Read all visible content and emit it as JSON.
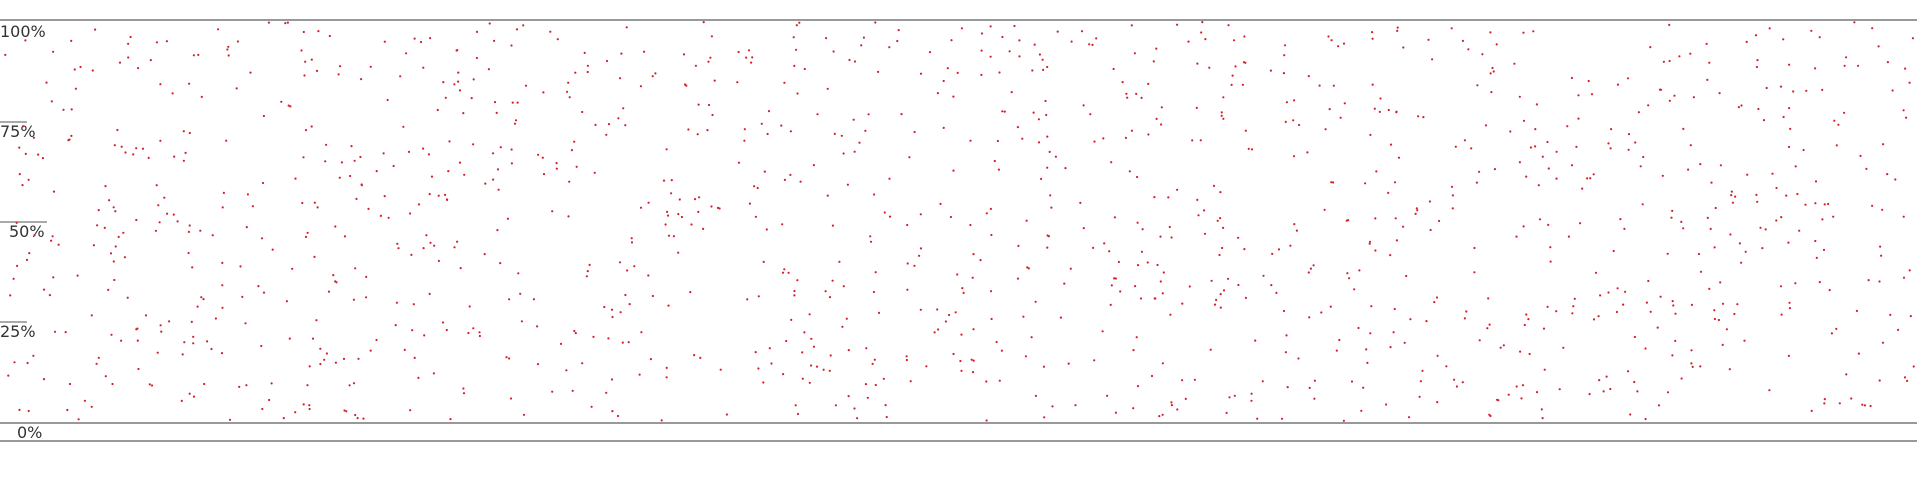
{
  "colors": {
    "point": "#d21f2b",
    "axis_line": "#333333",
    "tick_mark": "#555555",
    "tick_text": "#333333",
    "background": "#ffffff"
  },
  "chart_data": {
    "type": "scatter",
    "title": "",
    "xlabel": "",
    "ylabel": "",
    "grid": false,
    "legend": "none",
    "ylim": [
      0,
      100
    ],
    "yticks": [
      {
        "value": 100,
        "label": "100%"
      },
      {
        "value": 75,
        "label": "75%"
      },
      {
        "value": 50,
        "label": "50%"
      },
      {
        "value": 25,
        "label": "25%"
      },
      {
        "value": 0,
        "label": "0%"
      }
    ],
    "series": [
      {
        "point_count": 1300,
        "distribution": "uniform random",
        "x_range": [
          0,
          1
        ],
        "y_range": [
          0,
          100
        ],
        "seed": 20240517
      }
    ]
  }
}
